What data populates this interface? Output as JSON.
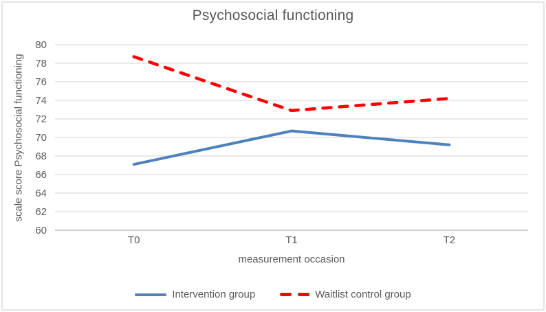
{
  "chart_data": {
    "type": "line",
    "title": "Psychosocial functioning",
    "xlabel": "measurement occasion",
    "ylabel": "scale score Psychosocial functioning",
    "categories": [
      "T0",
      "T1",
      "T2"
    ],
    "series": [
      {
        "name": "Intervention group",
        "values": [
          67.1,
          70.7,
          69.2
        ],
        "color": "#4F81BD",
        "style": "solid"
      },
      {
        "name": "Waitlist control group",
        "values": [
          78.7,
          72.9,
          74.2
        ],
        "color": "#FF0000",
        "style": "dashed"
      }
    ],
    "ylim": [
      60,
      80
    ],
    "ytick_step": 2,
    "yticks": [
      "60",
      "62",
      "64",
      "66",
      "68",
      "70",
      "72",
      "74",
      "76",
      "78",
      "80"
    ],
    "grid": true,
    "legend_position": "bottom",
    "style": {
      "grid_color": "#dedede",
      "axis_color": "#bfbfbf",
      "text_color": "#595959",
      "background": "#ffffff",
      "border_color": "#e4e4e4"
    }
  }
}
